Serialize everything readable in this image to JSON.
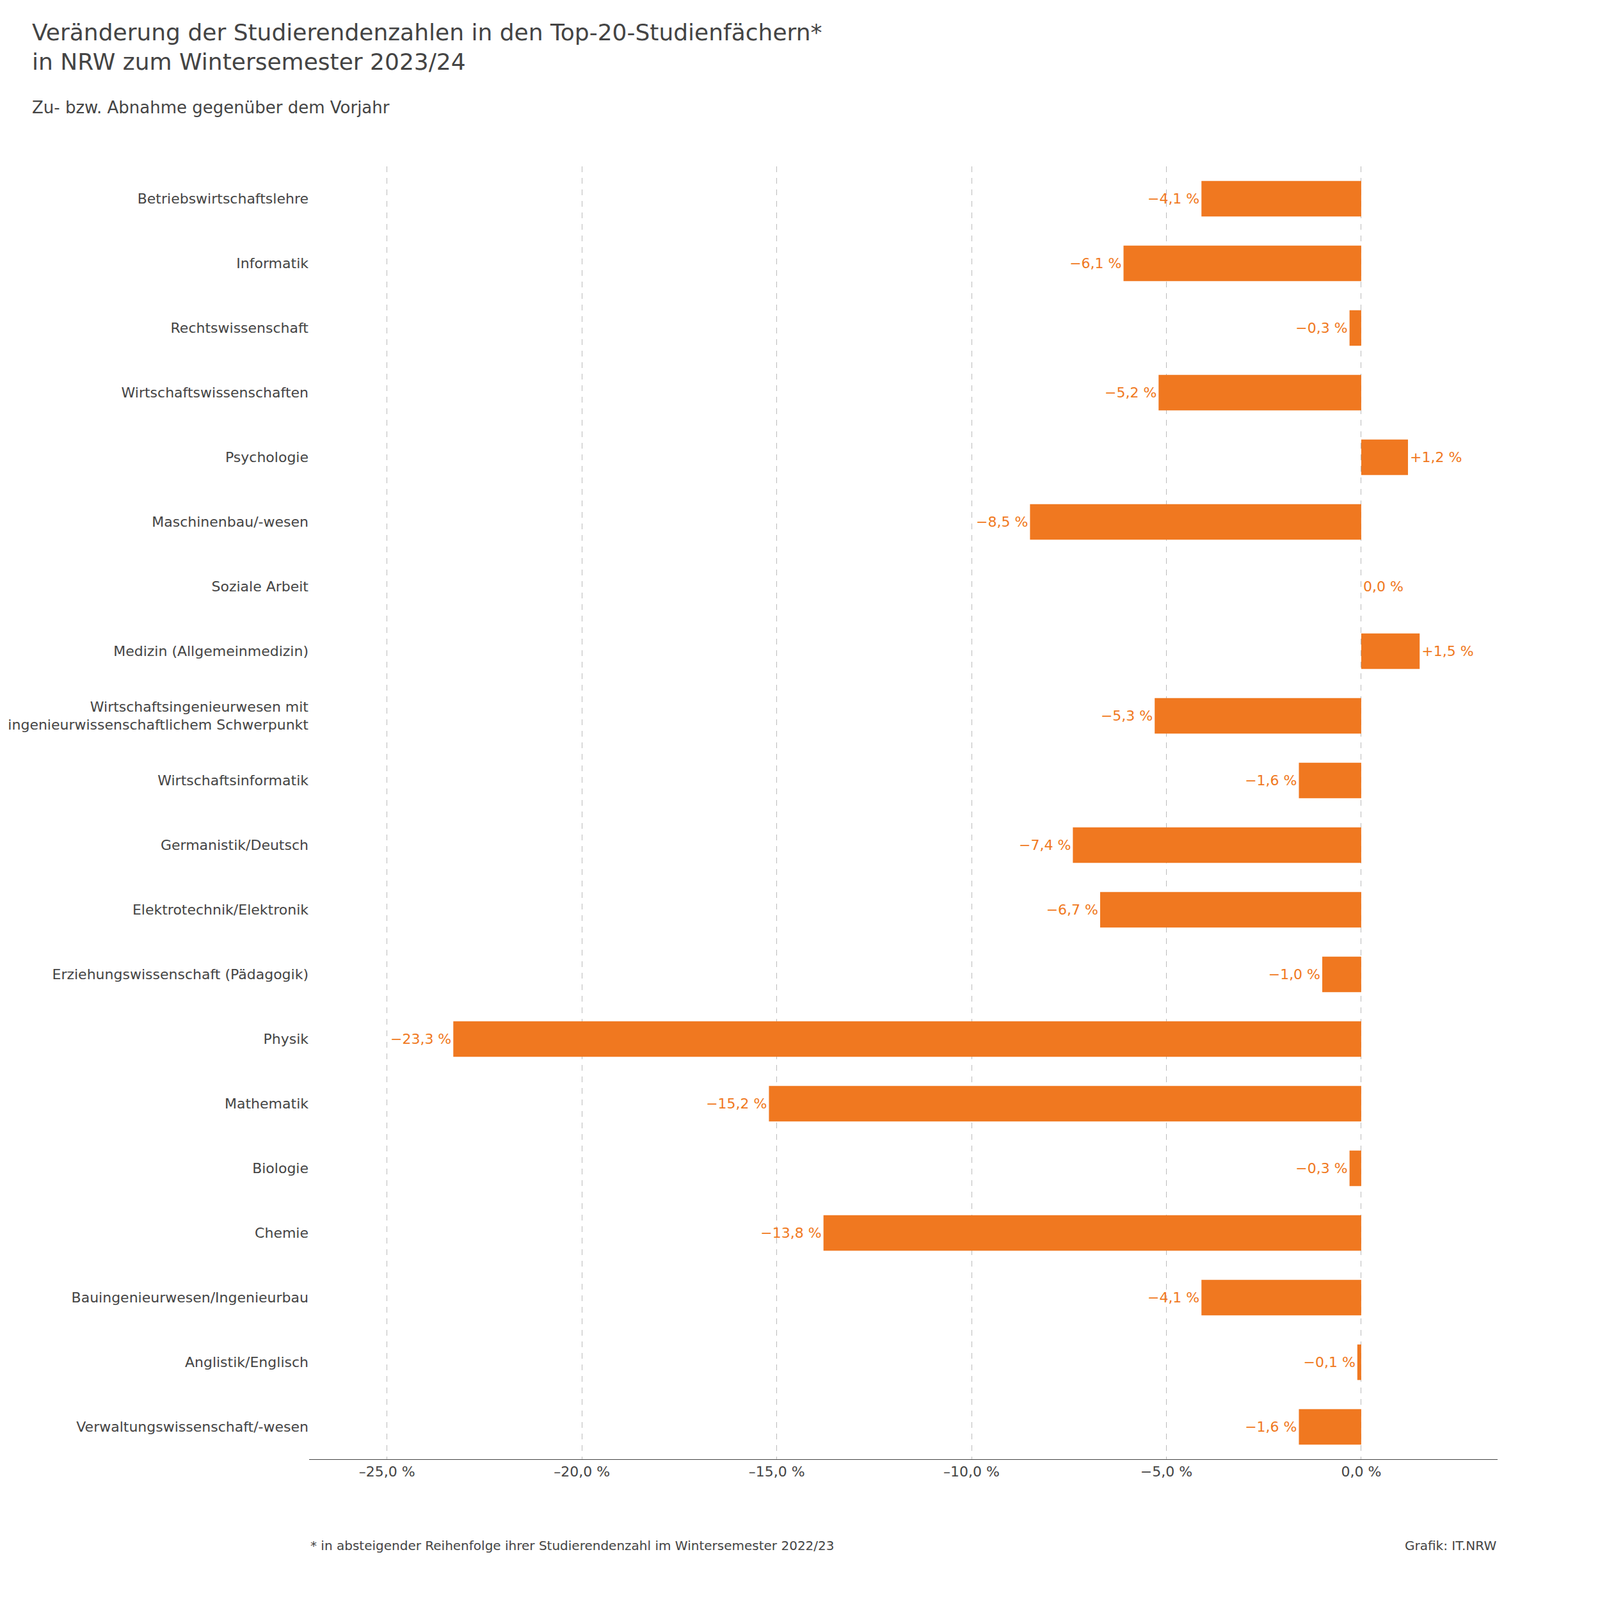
{
  "chart_data": {
    "type": "bar",
    "orientation": "horizontal",
    "title": "Veränderung der Studierendenzahlen in den Top-20-Studienfächern*\nin NRW zum Wintersemester 2023/24",
    "subtitle": "Zu- bzw. Abnahme gegenüber dem Vorjahr",
    "annotations": [
      "* in absteigender Reihenfolge ihrer Studierendenzahl im Wintersemester 2022/23",
      "Grafik: IT.NRW"
    ],
    "categories": [
      "Betriebswirtschaftslehre",
      "Informatik",
      "Rechtswissenschaft",
      "Wirtschaftswissenschaften",
      "Psychologie",
      "Maschinenbau/-wesen",
      "Soziale Arbeit",
      "Medizin (Allgemeinmedizin)",
      "Wirtschaftsingenieurwesen mit\ningenieurwissenschaftlichem Schwerpunkt",
      "Wirtschaftsinformatik",
      "Germanistik/Deutsch",
      "Elektrotechnik/Elektronik",
      "Erziehungswissenschaft (Pädagogik)",
      "Physik",
      "Mathematik",
      "Biologie",
      "Chemie",
      "Bauingenieurwesen/Ingenieurbau",
      "Anglistik/Englisch",
      "Verwaltungswissenschaft/-wesen"
    ],
    "values": [
      -4.1,
      -6.1,
      -0.3,
      -5.2,
      1.2,
      -8.5,
      0.0,
      1.5,
      -5.3,
      -1.6,
      -7.4,
      -6.7,
      -1.0,
      -23.3,
      -15.2,
      -0.3,
      -13.8,
      -4.1,
      -0.1,
      -1.6
    ],
    "value_labels": [
      "−4,1 %",
      "−6,1 %",
      "−0,3 %",
      "−5,2 %",
      "+1,2 %",
      "−8,5 %",
      "0,0 %",
      "+1,5 %",
      "−5,3 %",
      "−1,6 %",
      "−7,4 %",
      "−6,7 %",
      "−1,0 %",
      "−23,3 %",
      "−15,2 %",
      "−0,3 %",
      "−13,8 %",
      "−4,1 %",
      "−0,1 %",
      "−1,6 %"
    ],
    "data_labels": true,
    "color": "#F07820",
    "xlim": [
      -27,
      3.5
    ],
    "xticks": [
      {
        "value": -25,
        "label": "–25,0 %"
      },
      {
        "value": -20,
        "label": "–20,0 %"
      },
      {
        "value": -15,
        "label": "–15,0 %"
      },
      {
        "value": -10,
        "label": "–10,0 %"
      },
      {
        "value": -5,
        "label": "−5,0 %"
      },
      {
        "value": 0,
        "label": "0,0 %"
      }
    ],
    "grid": true
  }
}
